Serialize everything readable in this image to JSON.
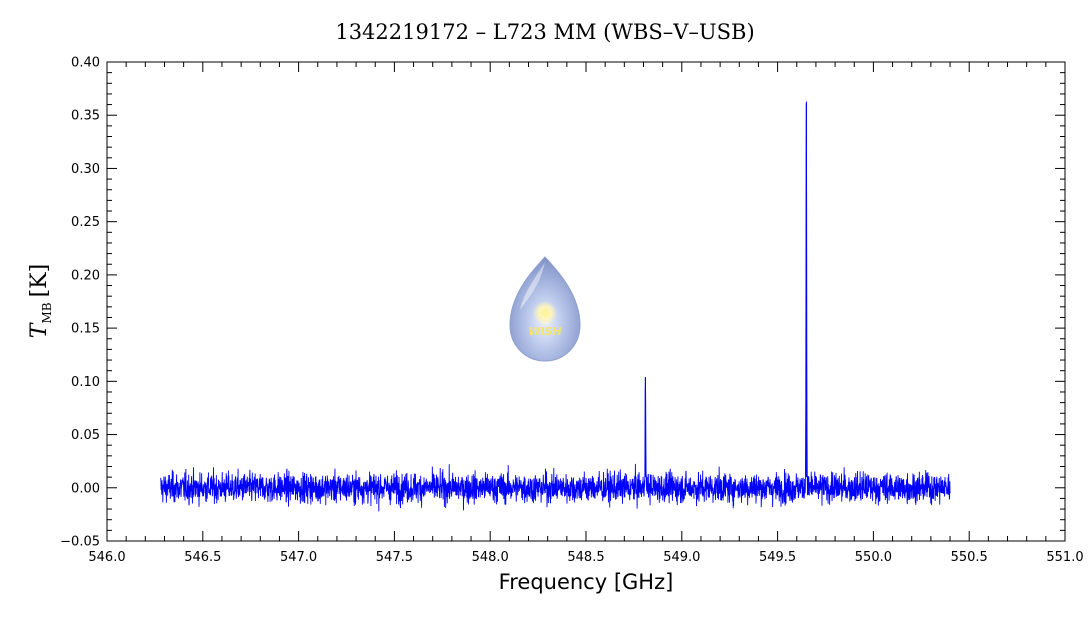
{
  "chart_data": {
    "type": "line",
    "title": "1342219172 – L723 MM (WBS–V–USB)",
    "xlabel": "Frequency [GHz]",
    "ylabel_main": "T",
    "ylabel_sub": "MB",
    "ylabel_unit": "[K]",
    "xlim": [
      546.0,
      551.0
    ],
    "ylim": [
      -0.05,
      0.4
    ],
    "x_ticks": [
      "546.0",
      "546.5",
      "547.0",
      "547.5",
      "548.0",
      "548.5",
      "549.0",
      "549.5",
      "550.0",
      "550.5",
      "551.0"
    ],
    "y_ticks": [
      "−0.05",
      "0.00",
      "0.05",
      "0.10",
      "0.15",
      "0.20",
      "0.25",
      "0.30",
      "0.35",
      "0.40"
    ],
    "series": [
      {
        "color": "#0000ff",
        "x_range": [
          546.28,
          550.4
        ],
        "baseline": 0.0,
        "noise_rms": 0.007,
        "lines": [
          {
            "x": 548.81,
            "peak": 0.104
          },
          {
            "x": 549.65,
            "peak": 0.362
          }
        ]
      }
    ],
    "logo_text": "WISH"
  }
}
